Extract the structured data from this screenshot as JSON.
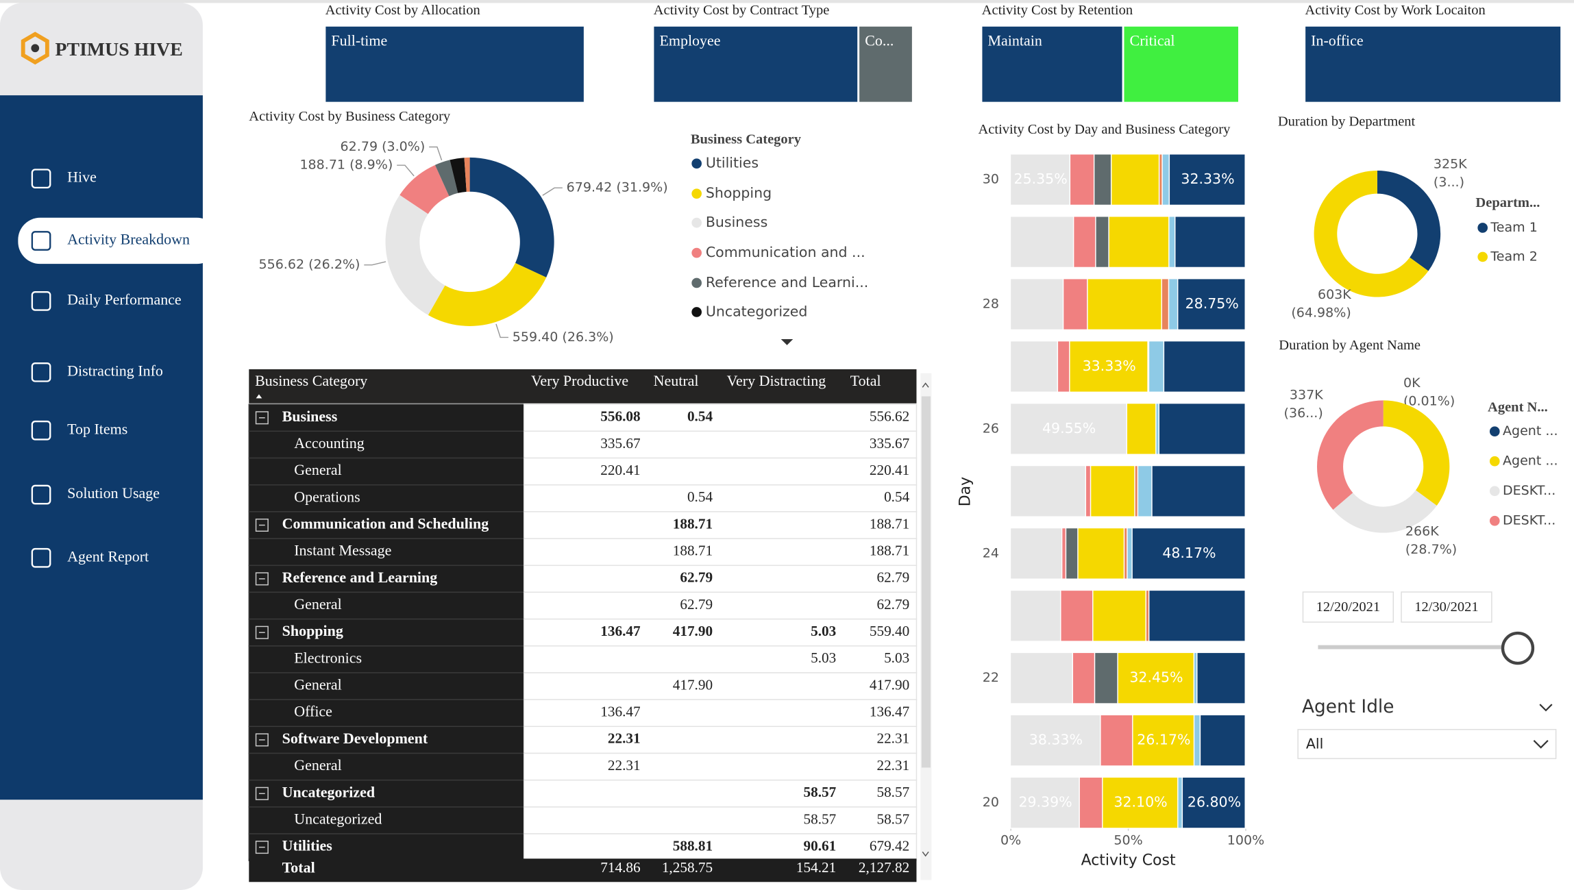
{
  "sidebar": {
    "logo": "PTIMUS HIVE",
    "active": 1,
    "items": [
      "Hive",
      "Activity Breakdown",
      "Daily Performance",
      "Distracting Info",
      "Top Items",
      "Solution Usage",
      "Agent Report"
    ]
  },
  "treemaps": [
    {
      "title": "Activity Cost by Allocation",
      "tiles": [
        {
          "label": "Full-time",
          "value": 100,
          "color": "#123f70"
        }
      ]
    },
    {
      "title": "Activity Cost by Contract Type",
      "tiles": [
        {
          "label": "Employee",
          "value": 79,
          "color": "#123f70"
        },
        {
          "label": "Co...",
          "value": 21,
          "color": "#5f6b6d"
        }
      ]
    },
    {
      "title": "Activity Cost by Retention",
      "tiles": [
        {
          "label": "Maintain",
          "value": 55,
          "color": "#123f70"
        },
        {
          "label": "Critical",
          "value": 45,
          "color": "#40ef40"
        }
      ]
    },
    {
      "title": "Activity Cost by Work Locaiton",
      "tiles": [
        {
          "label": "In-office",
          "value": 100,
          "color": "#123f70"
        }
      ]
    }
  ],
  "chart_data": [
    {
      "type": "donut",
      "title": "Activity Cost by Business Category",
      "legend_title": "Business Category",
      "categories": [
        "Utilities",
        "Shopping",
        "Business",
        "Communication and ...",
        "Reference and Learni...",
        "Uncategorized",
        null
      ],
      "values": [
        679.42,
        559.4,
        556.62,
        188.71,
        62.79,
        58.57,
        22.31
      ],
      "value_labels": [
        "679.42 (31.9%)",
        "559.40 (26.3%)",
        "556.62 (26.2%)",
        "188.71 (8.9%)",
        "62.79 (3.0%)",
        null,
        null
      ],
      "colors": [
        "#123f70",
        "#f5d800",
        "#e6e6e6",
        "#f08080",
        "#5f6b6d",
        "#111111",
        "#e8845c"
      ]
    },
    {
      "type": "stacked-bar",
      "title": "Activity Cost by Day and Business Category",
      "y_label": "Day",
      "x_label": "Activity Cost",
      "categories": [
        "30",
        null,
        "28",
        null,
        "26",
        null,
        "24",
        null,
        "22",
        null,
        "20"
      ],
      "xlim": [
        0,
        100
      ],
      "xticks": [
        {
          "value": 0,
          "label": "0%"
        },
        {
          "value": 50,
          "label": "50%"
        },
        {
          "value": 100,
          "label": "100%"
        }
      ],
      "series": [
        {
          "color": "#e6e6e6",
          "values": [
            25.35,
            26.9,
            22.5,
            20.1,
            49.55,
            32.05,
            21.93,
            21.4,
            26.5,
            38.33,
            29.39
          ],
          "value_labels": [
            "25.35%",
            null,
            null,
            null,
            "49.55%",
            null,
            null,
            null,
            null,
            "38.33%",
            "29.39%"
          ]
        },
        {
          "color": "#f08080",
          "values": [
            10.3,
            9.4,
            10.3,
            5.1,
            0,
            2.1,
            1.7,
            13.7,
            9.4,
            13.7,
            9.8
          ]
        },
        {
          "color": "#5f6b6d",
          "values": [
            7.3,
            5.6,
            0,
            0,
            0,
            0,
            5.1,
            0,
            9.8,
            0,
            0
          ]
        },
        {
          "color": "#f5d800",
          "values": [
            20.4,
            25.6,
            31.6,
            33.33,
            12.4,
            18.8,
            19.7,
            22.6,
            32.45,
            26.17,
            32.1
          ],
          "value_labels": [
            null,
            null,
            null,
            "33.33%",
            null,
            null,
            null,
            null,
            "32.45%",
            "26.17%",
            "32.10%"
          ]
        },
        {
          "color": "#e8845c",
          "values": [
            1.3,
            0,
            3.0,
            0.4,
            0,
            1.3,
            1.3,
            1.3,
            0,
            0,
            0
          ]
        },
        {
          "color": "#8ecae6",
          "values": [
            3,
            2.6,
            3.85,
            6.4,
            1.3,
            6,
            2.1,
            0,
            1.3,
            2.6,
            1.9
          ]
        },
        {
          "color": "#123f70",
          "values": [
            32.33,
            29.9,
            28.75,
            34.67,
            36.75,
            39.75,
            48.17,
            41.0,
            20.55,
            19.2,
            26.8
          ],
          "value_labels": [
            "32.33%",
            null,
            "28.75%",
            null,
            null,
            null,
            "48.17%",
            null,
            null,
            null,
            "26.80%"
          ]
        }
      ]
    },
    {
      "type": "donut",
      "title": "Duration by Department",
      "legend_title": "Departm...",
      "categories": [
        "Team 1",
        "Team 2"
      ],
      "values": [
        325000,
        603000
      ],
      "value_labels": [
        "325K",
        "603K"
      ],
      "pct_labels": [
        "(3...)",
        "(64.98%)"
      ],
      "colors": [
        "#123f70",
        "#f5d800"
      ]
    },
    {
      "type": "donut",
      "title": "Duration by Agent Name",
      "legend_title": "Agent N...",
      "categories": [
        "Agent ...",
        "Agent ...",
        "DESKT...",
        "DESKT..."
      ],
      "values": [
        100,
        325000,
        266000,
        337000
      ],
      "value_labels": [
        "0K",
        null,
        "266K",
        "337K"
      ],
      "pct_labels": [
        "(0.01%)",
        null,
        "(28.7%)",
        "(36...)"
      ],
      "colors": [
        "#123f70",
        "#f5d800",
        "#e6e6e6",
        "#f08080"
      ]
    }
  ],
  "table": {
    "columns": [
      "Business Category",
      "Very Productive",
      "Neutral",
      "Very Distracting",
      "Total"
    ],
    "rows": [
      {
        "label": "Business",
        "group": true,
        "cells": [
          "556.08",
          "0.54",
          null,
          "556.62"
        ]
      },
      {
        "label": "Accounting",
        "cells": [
          "335.67",
          null,
          null,
          "335.67"
        ]
      },
      {
        "label": "General",
        "cells": [
          "220.41",
          null,
          null,
          "220.41"
        ]
      },
      {
        "label": "Operations",
        "cells": [
          null,
          "0.54",
          null,
          "0.54"
        ]
      },
      {
        "label": "Communication and Scheduling",
        "group": true,
        "cells": [
          null,
          "188.71",
          null,
          "188.71"
        ]
      },
      {
        "label": "Instant Message",
        "cells": [
          null,
          "188.71",
          null,
          "188.71"
        ]
      },
      {
        "label": "Reference and Learning",
        "group": true,
        "cells": [
          null,
          "62.79",
          null,
          "62.79"
        ]
      },
      {
        "label": "General",
        "cells": [
          null,
          "62.79",
          null,
          "62.79"
        ]
      },
      {
        "label": "Shopping",
        "group": true,
        "cells": [
          "136.47",
          "417.90",
          "5.03",
          "559.40"
        ]
      },
      {
        "label": "Electronics",
        "cells": [
          null,
          null,
          "5.03",
          "5.03"
        ]
      },
      {
        "label": "General",
        "cells": [
          null,
          "417.90",
          null,
          "417.90"
        ]
      },
      {
        "label": "Office",
        "cells": [
          "136.47",
          null,
          null,
          "136.47"
        ]
      },
      {
        "label": "Software Development",
        "group": true,
        "cells": [
          "22.31",
          null,
          null,
          "22.31"
        ]
      },
      {
        "label": "General",
        "cells": [
          "22.31",
          null,
          null,
          "22.31"
        ]
      },
      {
        "label": "Uncategorized",
        "group": true,
        "cells": [
          null,
          null,
          "58.57",
          "58.57"
        ]
      },
      {
        "label": "Uncategorized",
        "cells": [
          null,
          null,
          "58.57",
          "58.57"
        ]
      },
      {
        "label": "Utilities",
        "group": true,
        "cells": [
          null,
          "588.81",
          "90.61",
          "679.42"
        ]
      }
    ],
    "total": {
      "label": "Total",
      "cells": [
        "714.86",
        "1,258.75",
        "154.21",
        "2,127.82"
      ]
    }
  },
  "filters": {
    "date_from": "12/20/2021",
    "date_to": "12/30/2021",
    "dropdown_title": "Agent Idle",
    "dropdown_value": "All"
  }
}
